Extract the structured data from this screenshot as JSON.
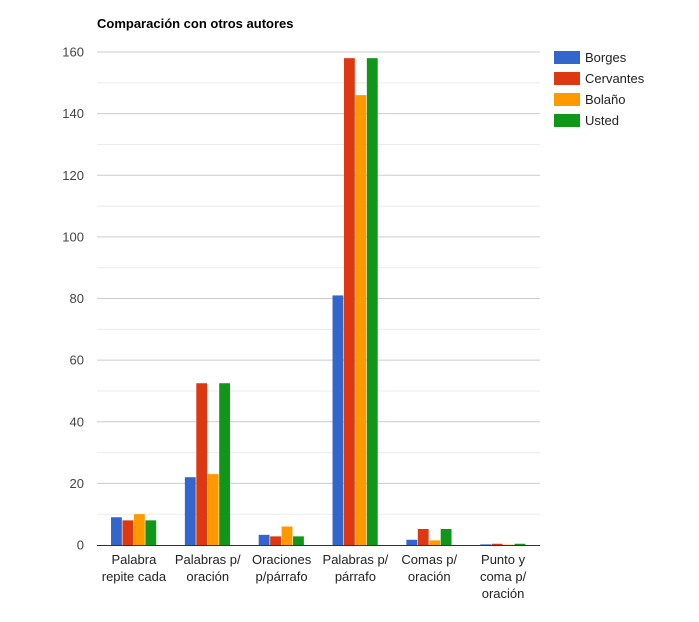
{
  "chart_data": {
    "type": "bar",
    "title": "Comparación con otros autores",
    "categories": [
      [
        "Palabra",
        "repite cada"
      ],
      [
        "Palabras p/",
        "oración"
      ],
      [
        "Oraciones",
        "p/párrafo"
      ],
      [
        "Palabras p/",
        "párrafo"
      ],
      [
        "Comas p/",
        "oración"
      ],
      [
        "Punto y",
        "coma p/",
        "oración"
      ]
    ],
    "series": [
      {
        "name": "Borges",
        "color": "#3366cc",
        "values": [
          9,
          22,
          3.3,
          81,
          1.7,
          0.2
        ]
      },
      {
        "name": "Cervantes",
        "color": "#dc3912",
        "values": [
          8,
          52.5,
          2.8,
          158,
          5.2,
          0.4
        ]
      },
      {
        "name": "Bolaño",
        "color": "#ff9900",
        "values": [
          10,
          23,
          6,
          146,
          1.5,
          0.1
        ]
      },
      {
        "name": "Usted",
        "color": "#109618",
        "values": [
          8,
          52.5,
          2.8,
          158,
          5.2,
          0.4
        ]
      }
    ],
    "ylim": [
      0,
      160
    ],
    "yticks": [
      0,
      20,
      40,
      60,
      80,
      100,
      120,
      140,
      160
    ],
    "grid": true,
    "legend_position": "right"
  }
}
